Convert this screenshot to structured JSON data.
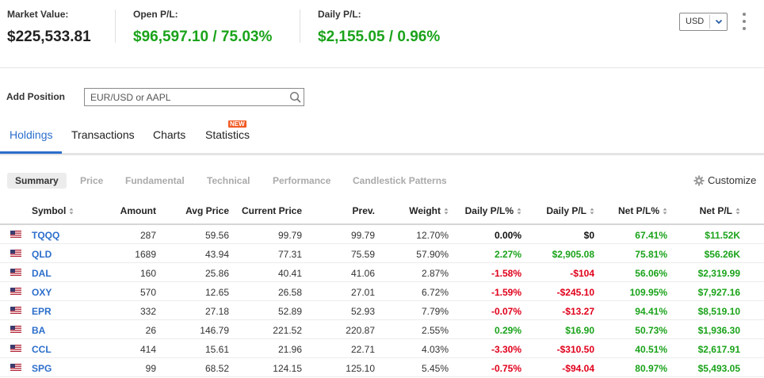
{
  "summary": {
    "market_value": {
      "label": "Market Value:",
      "value": "$225,533.81"
    },
    "open_pl": {
      "label": "Open P/L:",
      "value": "$96,597.10 / 75.03%"
    },
    "daily_pl": {
      "label": "Daily P/L:",
      "value": "$2,155.05 / 0.96%"
    },
    "currency": "USD"
  },
  "add_position": {
    "label": "Add Position",
    "placeholder": "EUR/USD or AAPL"
  },
  "tabs": [
    {
      "label": "Holdings",
      "active": true
    },
    {
      "label": "Transactions"
    },
    {
      "label": "Charts"
    },
    {
      "label": "Statistics",
      "badge": "NEW"
    }
  ],
  "subtabs": [
    {
      "label": "Summary",
      "active": true
    },
    {
      "label": "Price"
    },
    {
      "label": "Fundamental"
    },
    {
      "label": "Technical"
    },
    {
      "label": "Performance"
    },
    {
      "label": "Candlestick Patterns"
    }
  ],
  "customize_label": "Customize",
  "table": {
    "columns": [
      "Symbol",
      "Amount",
      "Avg Price",
      "Current Price",
      "Prev.",
      "Weight",
      "Daily P/L%",
      "Daily P/L",
      "Net P/L%",
      "Net P/L"
    ],
    "rows": [
      {
        "symbol": "TQQQ",
        "amount": "287",
        "avg_price": "59.56",
        "current_price": "99.79",
        "prev": "99.79",
        "weight": "12.70%",
        "daily_pct": "0.00%",
        "daily_pl": "$0",
        "net_pct": "67.41%",
        "net_pl": "$11.52K",
        "daily_sign": "zero"
      },
      {
        "symbol": "QLD",
        "amount": "1689",
        "avg_price": "43.94",
        "current_price": "77.31",
        "prev": "75.59",
        "weight": "57.90%",
        "daily_pct": "2.27%",
        "daily_pl": "$2,905.08",
        "net_pct": "75.81%",
        "net_pl": "$56.26K",
        "daily_sign": "pos"
      },
      {
        "symbol": "DAL",
        "amount": "160",
        "avg_price": "25.86",
        "current_price": "40.41",
        "prev": "41.06",
        "weight": "2.87%",
        "daily_pct": "-1.58%",
        "daily_pl": "-$104",
        "net_pct": "56.06%",
        "net_pl": "$2,319.99",
        "daily_sign": "neg"
      },
      {
        "symbol": "OXY",
        "amount": "570",
        "avg_price": "12.65",
        "current_price": "26.58",
        "prev": "27.01",
        "weight": "6.72%",
        "daily_pct": "-1.59%",
        "daily_pl": "-$245.10",
        "net_pct": "109.95%",
        "net_pl": "$7,927.16",
        "daily_sign": "neg"
      },
      {
        "symbol": "EPR",
        "amount": "332",
        "avg_price": "27.18",
        "current_price": "52.89",
        "prev": "52.93",
        "weight": "7.79%",
        "daily_pct": "-0.07%",
        "daily_pl": "-$13.27",
        "net_pct": "94.41%",
        "net_pl": "$8,519.10",
        "daily_sign": "neg"
      },
      {
        "symbol": "BA",
        "amount": "26",
        "avg_price": "146.79",
        "current_price": "221.52",
        "prev": "220.87",
        "weight": "2.55%",
        "daily_pct": "0.29%",
        "daily_pl": "$16.90",
        "net_pct": "50.73%",
        "net_pl": "$1,936.30",
        "daily_sign": "pos"
      },
      {
        "symbol": "CCL",
        "amount": "414",
        "avg_price": "15.61",
        "current_price": "21.96",
        "prev": "22.71",
        "weight": "4.03%",
        "daily_pct": "-3.30%",
        "daily_pl": "-$310.50",
        "net_pct": "40.51%",
        "net_pl": "$2,617.91",
        "daily_sign": "neg"
      },
      {
        "symbol": "SPG",
        "amount": "99",
        "avg_price": "68.52",
        "current_price": "124.15",
        "prev": "125.10",
        "weight": "5.45%",
        "daily_pct": "-0.75%",
        "daily_pl": "-$94.04",
        "net_pct": "80.97%",
        "net_pl": "$5,493.05",
        "daily_sign": "neg"
      }
    ]
  },
  "colors": {
    "positive": "#1aa31a",
    "negative": "#e0001b",
    "accent": "#2c6ecb",
    "badge": "#f05a24"
  },
  "icons": {
    "flag": "us-flag-icon",
    "search": "search-icon",
    "settings": "gear-icon",
    "menu": "kebab-menu-icon",
    "sort": "sort-icon",
    "dropdown": "chevron-down-icon"
  }
}
